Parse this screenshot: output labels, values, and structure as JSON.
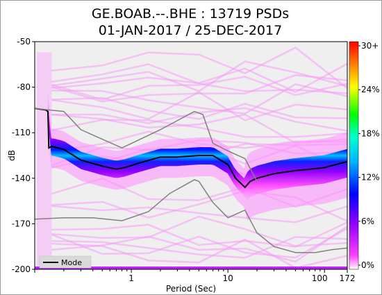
{
  "chart_data": {
    "type": "heatmap",
    "title": [
      "GE.BOAB.--.BHE : 13719 PSDs",
      "01-JAN-2017 / 25-DEC-2017"
    ],
    "xlabel": "Period (Sec)",
    "ylabel": "dB",
    "x_scale": "log",
    "xlim": [
      0.1,
      172
    ],
    "ylim": [
      -200,
      -50
    ],
    "x_ticks": [
      1,
      10,
      100,
      172
    ],
    "x_tick_labels": [
      "1",
      "10",
      "100",
      "172"
    ],
    "y_ticks": [
      -50,
      -80,
      -110,
      -140,
      -170,
      -200
    ],
    "y_tick_labels": [
      "-50",
      "-80",
      "-110",
      "-140",
      "-170",
      "-200"
    ],
    "colorbar": {
      "tick_labels": [
        "30+",
        "24%",
        "18%",
        "12%",
        "6%",
        "0%"
      ],
      "colors": [
        "#ff0000",
        "#ff8000",
        "#ffff00",
        "#00ff00",
        "#00ffff",
        "#0000ff",
        "#ff00ff",
        "#ffffff"
      ]
    },
    "legend": {
      "position": "bottom-left",
      "entries": [
        "Mode"
      ]
    },
    "series": [
      {
        "name": "Mode",
        "x": [
          0.1,
          0.13,
          0.137,
          0.14,
          0.15,
          0.2,
          0.3,
          0.5,
          0.7,
          0.85,
          1.2,
          2,
          3,
          5,
          7,
          10,
          12,
          15,
          17,
          20,
          30,
          50,
          100,
          172
        ],
        "y": [
          -94,
          -95,
          -96,
          -120,
          -119,
          -121,
          -128,
          -132,
          -134,
          -133,
          -130,
          -126,
          -126,
          -125,
          -125,
          -131,
          -140,
          -146,
          -142,
          -140,
          -137,
          -135,
          -133,
          -129
        ]
      },
      {
        "x": [
          0.1,
          0.2,
          0.3,
          0.8,
          2,
          4.5,
          5.5,
          7,
          10,
          15,
          20
        ],
        "y": [
          -94,
          -96,
          -108,
          -120,
          -108,
          -96,
          -98,
          -117,
          -122,
          -127,
          -142
        ]
      },
      {
        "x": [
          0.1,
          0.2,
          0.4,
          0.8,
          1.5,
          2.5,
          4.5,
          5,
          7,
          10,
          15,
          20,
          30,
          50,
          80,
          120,
          172
        ],
        "y": [
          -167,
          -166,
          -166,
          -168,
          -162,
          -150,
          -141,
          -142,
          -156,
          -166,
          -161,
          -176,
          -185,
          -189,
          -189,
          -187,
          -186
        ]
      }
    ]
  }
}
